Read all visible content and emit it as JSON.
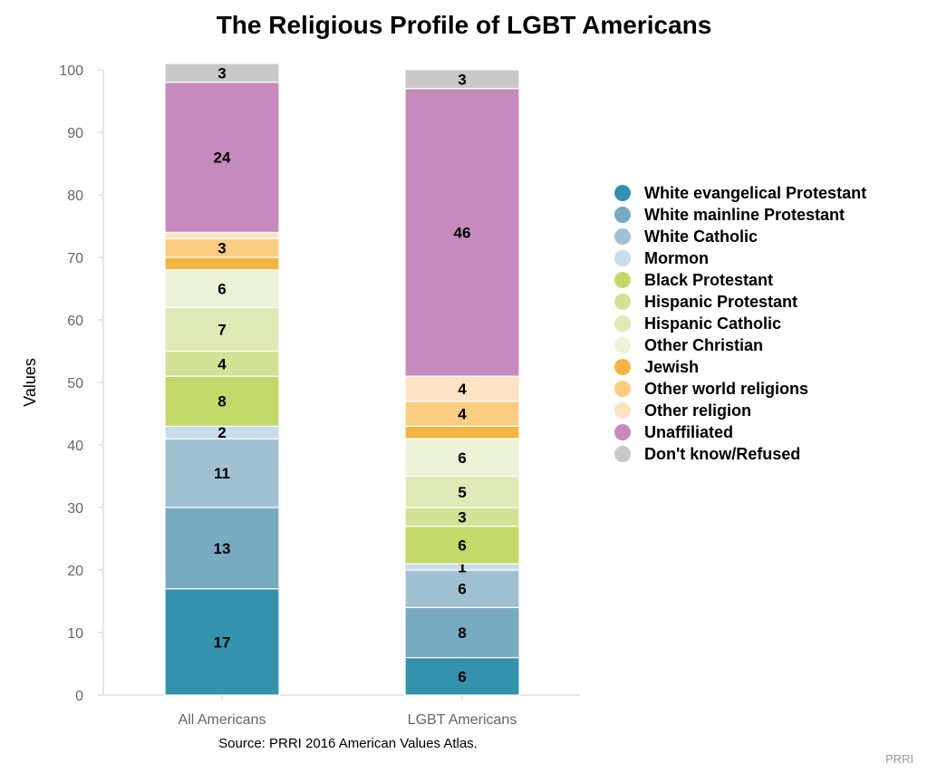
{
  "source": "Source: PRRI 2016 American Values Atlas.",
  "brand": "PRRI",
  "chart_data": {
    "type": "bar",
    "stacked": true,
    "title": "The Religious Profile of LGBT Americans",
    "xlabel": "",
    "ylabel": "Values",
    "ylim": [
      0,
      100
    ],
    "yticks": [
      0,
      10,
      20,
      30,
      40,
      50,
      60,
      70,
      80,
      90,
      100
    ],
    "grid": false,
    "legend_position": "right",
    "categories": [
      "All Americans",
      "LGBT Americans"
    ],
    "series": [
      {
        "name": "White evangelical Protestant",
        "color": "#3592ad",
        "values": [
          17,
          6
        ],
        "labels": [
          "17",
          "6"
        ]
      },
      {
        "name": "White mainline Protestant",
        "color": "#78aac2",
        "values": [
          13,
          8
        ],
        "labels": [
          "13",
          "8"
        ]
      },
      {
        "name": "White Catholic",
        "color": "#a1c1d3",
        "values": [
          11,
          6
        ],
        "labels": [
          "11",
          "6"
        ]
      },
      {
        "name": "Mormon",
        "color": "#c8dceb",
        "values": [
          2,
          1
        ],
        "labels": [
          "2",
          "1"
        ]
      },
      {
        "name": "Black Protestant",
        "color": "#c3d86a",
        "values": [
          8,
          6
        ],
        "labels": [
          "8",
          "6"
        ]
      },
      {
        "name": "Hispanic Protestant",
        "color": "#d3e396",
        "values": [
          4,
          3
        ],
        "labels": [
          "4",
          "3"
        ]
      },
      {
        "name": "Hispanic Catholic",
        "color": "#dfe9b5",
        "values": [
          7,
          5
        ],
        "labels": [
          "7",
          "5"
        ]
      },
      {
        "name": "Other Christian",
        "color": "#ecf3d8",
        "values": [
          6,
          6
        ],
        "labels": [
          "6",
          "6"
        ]
      },
      {
        "name": "Jewish",
        "color": "#f6b442",
        "values": [
          2,
          2
        ],
        "labels": [
          "",
          ""
        ]
      },
      {
        "name": "Other world religions",
        "color": "#fbcd83",
        "values": [
          3,
          4
        ],
        "labels": [
          "3",
          "4"
        ]
      },
      {
        "name": "Other religion",
        "color": "#fce4c4",
        "values": [
          1,
          4
        ],
        "labels": [
          "",
          "4"
        ]
      },
      {
        "name": "Unaffiliated",
        "color": "#c78abc",
        "values": [
          24,
          46
        ],
        "labels": [
          "24",
          "46"
        ]
      },
      {
        "name": "Don't know/Refused",
        "color": "#c8c8c8",
        "values": [
          3,
          3
        ],
        "labels": [
          "3",
          "3"
        ]
      }
    ]
  }
}
